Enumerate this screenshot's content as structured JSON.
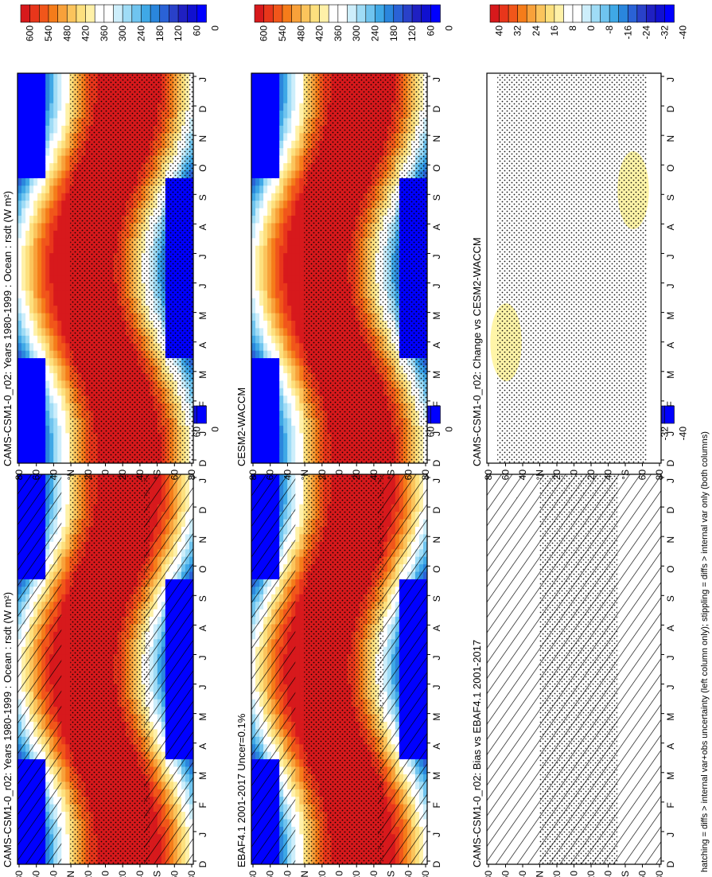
{
  "figure": {
    "footnote": "hatching = diffs > internal var+obs uncertainty (left column only); stippling = diffs > internal var only (both columns)"
  },
  "colorbars": {
    "field": {
      "ticks": [
        "600",
        "540",
        "480",
        "420",
        "360",
        "300",
        "240",
        "180",
        "120",
        "60",
        "0"
      ],
      "colors": [
        "#d7191c",
        "#e8361b",
        "#f1561a",
        "#f57c1a",
        "#f8a13a",
        "#fbc45c",
        "#fde07e",
        "#fff1a8",
        "#ffffff",
        "#ffffff",
        "#cdeefb",
        "#9fdcf6",
        "#6fc4ef",
        "#3fa8e6",
        "#2a86dd",
        "#2a62d6",
        "#2941c9",
        "#1f20c2",
        "#1010d0",
        "#0000ff"
      ]
    },
    "diff": {
      "ticks": [
        "40",
        "32",
        "24",
        "16",
        "8",
        "0",
        "-8",
        "-16",
        "-24",
        "-32",
        "-40"
      ],
      "colors": [
        "#d7191c",
        "#e8361b",
        "#f1561a",
        "#f57c1a",
        "#f8a13a",
        "#fbc45c",
        "#fde07e",
        "#fff1a8",
        "#ffffff",
        "#ffffff",
        "#cdeefb",
        "#9fdcf6",
        "#6fc4ef",
        "#3fa8e6",
        "#2a86dd",
        "#2a62d6",
        "#2941c9",
        "#1f20c2",
        "#1010d0",
        "#0000ff"
      ]
    }
  },
  "axes": {
    "months": [
      "D",
      "J",
      "F",
      "M",
      "A",
      "M",
      "J",
      "J",
      "A",
      "S",
      "O",
      "N",
      "D",
      "J"
    ],
    "lat_labels": [
      "80",
      "60",
      "40",
      "°N",
      "20",
      "0",
      "20",
      "40",
      "°S",
      "60",
      "80"
    ]
  },
  "chart_data": [
    {
      "type": "heatmap",
      "panel": "left-top",
      "title": "CAMS-CSM1-0_r02: Years 1980-1999 : Ocean : rsdt (W m²)",
      "colorbar": "field",
      "field": "insolation",
      "x": "latitude 90N to 90S",
      "y": "month D to J",
      "hatching": "partial",
      "stippling": "partial"
    },
    {
      "type": "heatmap",
      "panel": "left-middle",
      "title": "EBAF4.1 2001-2017 Uncer=0.1%",
      "colorbar": "field",
      "field": "insolation",
      "hatching": "partial",
      "stippling": "partial"
    },
    {
      "type": "heatmap",
      "panel": "left-bottom",
      "title": "CAMS-CSM1-0_r02: Bias vs EBAF4.1 2001-2017",
      "colorbar": "diff",
      "field": "bias",
      "hatching": "most",
      "stippling": "partial"
    },
    {
      "type": "heatmap",
      "panel": "right-top",
      "title": "CAMS-CSM1-0_r02: Years 1980-1999 : Ocean : rsdt (W m²)",
      "colorbar": "field",
      "field": "insolation",
      "stippling": "most"
    },
    {
      "type": "heatmap",
      "panel": "right-middle",
      "title": "CESM2-WACCM",
      "colorbar": "field",
      "field": "insolation",
      "stippling": "most"
    },
    {
      "type": "heatmap",
      "panel": "right-bottom",
      "title": "CAMS-CSM1-0_r02: Change vs CESM2-WACCM",
      "colorbar": "diff",
      "field": "change",
      "stippling": "most",
      "blobs": [
        {
          "month": "M",
          "lat_band": "60-80N",
          "value": 8
        },
        {
          "month": "S",
          "lat_band": "40-60S",
          "value": 8
        }
      ]
    }
  ]
}
